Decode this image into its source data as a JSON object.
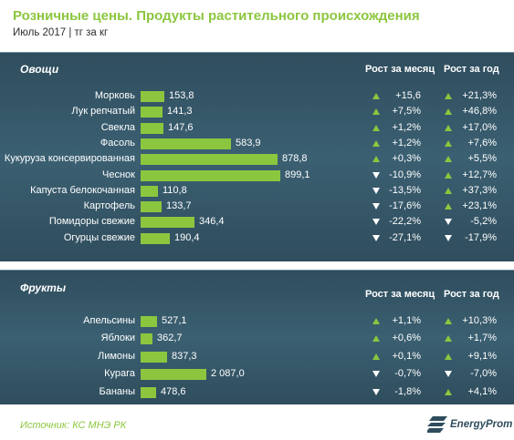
{
  "title": "Розничные  цены. Продукты растительного  происхождения",
  "subtitle": "Июль 2017 | тг за кг",
  "columns": {
    "month": "Рост за месяц",
    "year": "Рост за год"
  },
  "vegetables": {
    "title": "Овощи",
    "items": [
      {
        "name": "Морковь",
        "price": "153,8",
        "value": 153.8,
        "month": "+15,6",
        "month_dir": "up",
        "year": "+21,3%",
        "year_dir": "up"
      },
      {
        "name": "Лук репчатый",
        "price": "141,3",
        "value": 141.3,
        "month": "+7,5%",
        "month_dir": "up",
        "year": "+46,8%",
        "year_dir": "up"
      },
      {
        "name": "Свекла",
        "price": "147,6",
        "value": 147.6,
        "month": "+1,2%",
        "month_dir": "up",
        "year": "+17,0%",
        "year_dir": "up"
      },
      {
        "name": "Фасоль",
        "price": "583,9",
        "value": 583.9,
        "month": "+1,2%",
        "month_dir": "up",
        "year": "+7,6%",
        "year_dir": "up"
      },
      {
        "name": "Кукуруза консервированная",
        "price": "878,8",
        "value": 878.8,
        "month": "+0,3%",
        "month_dir": "up",
        "year": "+5,5%",
        "year_dir": "up"
      },
      {
        "name": "Чеснок",
        "price": "899,1",
        "value": 899.1,
        "month": "-10,9%",
        "month_dir": "down",
        "year": "+12,7%",
        "year_dir": "up"
      },
      {
        "name": "Капуста белокочанная",
        "price": "110,8",
        "value": 110.8,
        "month": "-13,5%",
        "month_dir": "down",
        "year": "+37,3%",
        "year_dir": "up"
      },
      {
        "name": "Картофель",
        "price": "133,7",
        "value": 133.7,
        "month": "-17,6%",
        "month_dir": "down",
        "year": "+23,1%",
        "year_dir": "up"
      },
      {
        "name": "Помидоры свежие",
        "price": "346,4",
        "value": 346.4,
        "month": "-22,2%",
        "month_dir": "down",
        "year": "-5,2%",
        "year_dir": "down"
      },
      {
        "name": "Огурцы свежие",
        "price": "190,4",
        "value": 190.4,
        "month": "-27,1%",
        "month_dir": "down",
        "year": "-17,9%",
        "year_dir": "down"
      }
    ]
  },
  "fruits": {
    "title": "Фрукты",
    "items": [
      {
        "name": "Апельсины",
        "price": "527,1",
        "value": 527.1,
        "month": "+1,1%",
        "month_dir": "up",
        "year": "+10,3%",
        "year_dir": "up"
      },
      {
        "name": "Яблоки",
        "price": "362,7",
        "value": 362.7,
        "month": "+0,6%",
        "month_dir": "up",
        "year": "+1,7%",
        "year_dir": "up"
      },
      {
        "name": "Лимоны",
        "price": "837,3",
        "value": 837.3,
        "month": "+0,1%",
        "month_dir": "up",
        "year": "+9,1%",
        "year_dir": "up"
      },
      {
        "name": "Курага",
        "price": "2 087,0",
        "value": 2087.0,
        "month": "-0,7%",
        "month_dir": "down",
        "year": "-7,0%",
        "year_dir": "down"
      },
      {
        "name": "Бананы",
        "price": "478,6",
        "value": 478.6,
        "month": "-1,8%",
        "month_dir": "down",
        "year": "+4,1%",
        "year_dir": "up"
      }
    ]
  },
  "source": "Источник: КС МНЭ РК",
  "logo_text": "EnergyProm",
  "colors": {
    "accent": "#8cc63f",
    "panel": "#34566a",
    "down_arrow": "#ffffff"
  }
}
